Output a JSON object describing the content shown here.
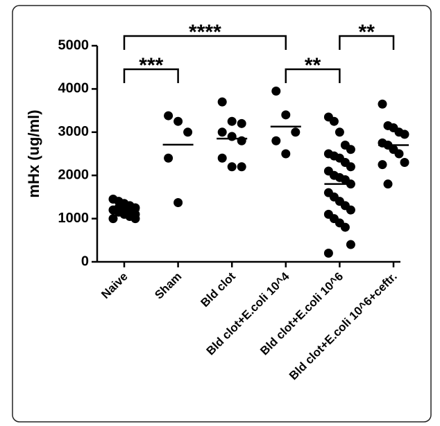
{
  "chart_data": {
    "type": "dot",
    "y_label": "mHx (ug/ml)",
    "categories": [
      "Naive",
      "Sham",
      "Bld clot",
      "Bld clot+E.coli 10^4",
      "Bld clot+E.coli 10^6",
      "Bld clot+E.coli 10^6+ceftr."
    ],
    "values": [
      [
        1450,
        1400,
        1350,
        1300,
        1250,
        1200,
        1150,
        1100,
        1050,
        1000,
        1000,
        1250,
        1300,
        1150,
        1100
      ],
      [
        3380,
        3250,
        3000,
        2400,
        1370
      ],
      [
        3700,
        3250,
        3200,
        3000,
        2900,
        2800,
        2400,
        2200,
        2200
      ],
      [
        3950,
        3400,
        3000,
        2800,
        2500
      ],
      [
        3350,
        3250,
        3000,
        2700,
        2600,
        2500,
        2450,
        2400,
        2300,
        2200,
        2100,
        2000,
        1950,
        1900,
        1800,
        1600,
        1500,
        1400,
        1300,
        1200,
        1100,
        1000,
        900,
        800,
        400,
        200
      ],
      [
        3650,
        3150,
        3100,
        3000,
        2950,
        2750,
        2700,
        2600,
        2500,
        2300,
        2250,
        1800
      ]
    ],
    "means": [
      1200,
      2710,
      2850,
      3130,
      1800,
      2700
    ],
    "color": "#000000",
    "ylim": [
      0,
      5000
    ],
    "yticks": [
      0,
      1000,
      2000,
      3000,
      4000,
      5000
    ],
    "annotations": [
      "****",
      "***",
      "**",
      "**"
    ]
  }
}
